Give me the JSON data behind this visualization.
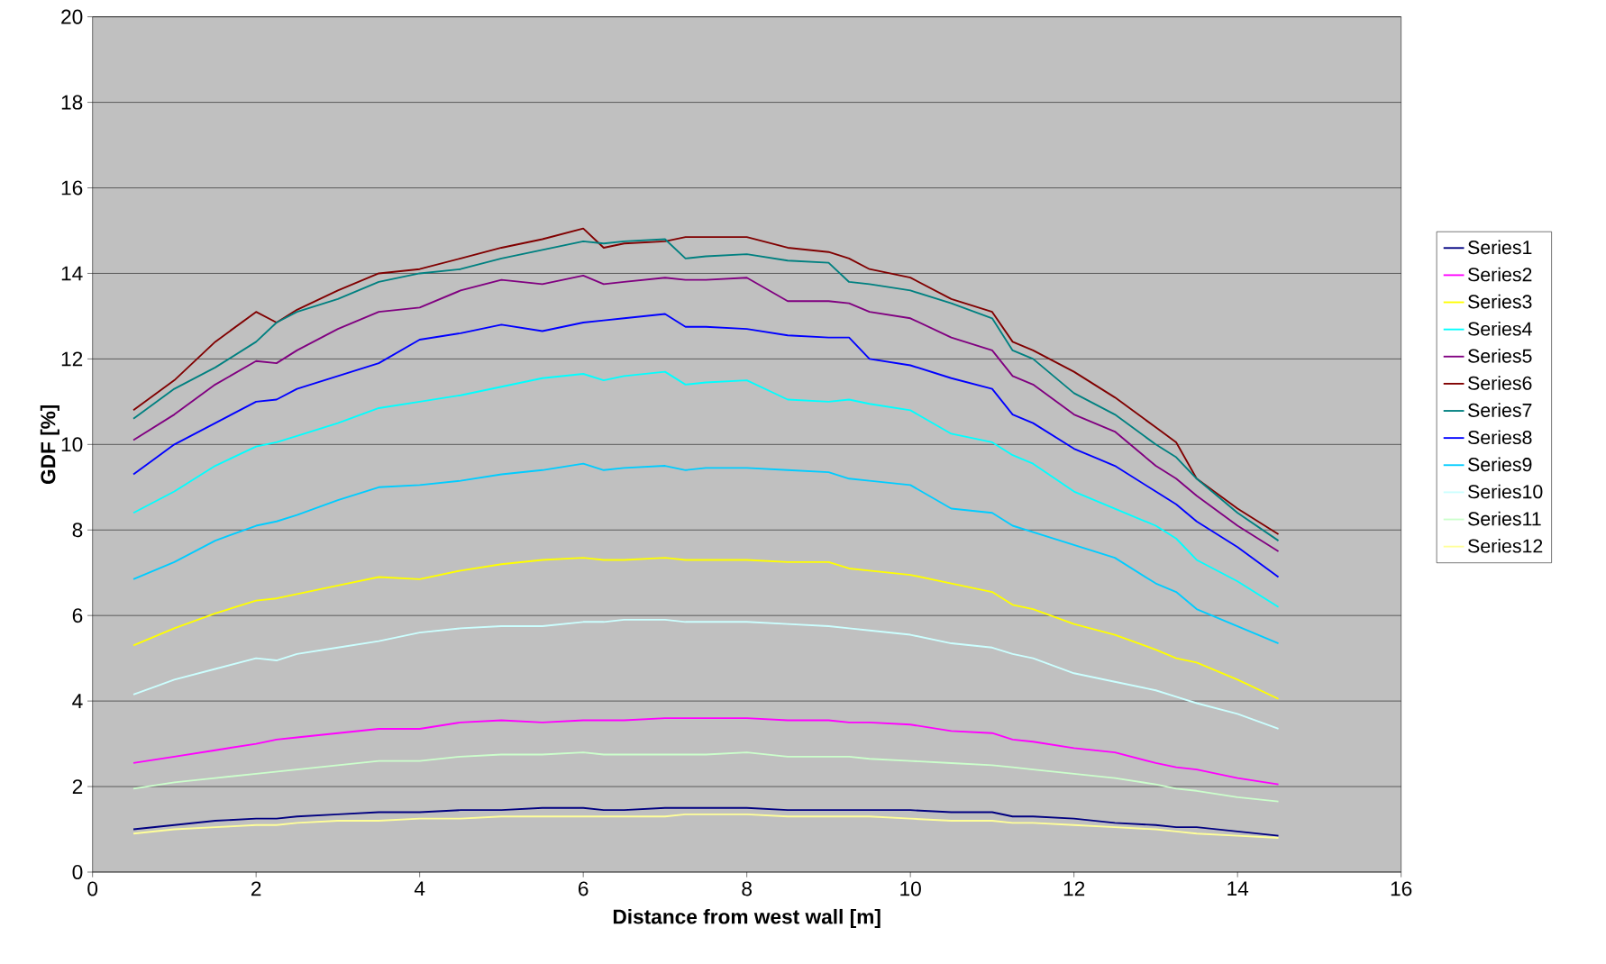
{
  "chart_data": {
    "type": "line",
    "xlabel": "Distance from west wall [m]",
    "ylabel": "GDF [%]",
    "x": [
      0.5,
      1,
      1.5,
      2,
      2.25,
      2.5,
      3,
      3.5,
      4,
      4.5,
      5,
      5.5,
      6,
      6.25,
      6.5,
      7,
      7.25,
      7.5,
      8,
      8.5,
      9,
      9.25,
      9.5,
      10,
      10.5,
      11,
      11.25,
      11.5,
      12,
      12.5,
      13,
      13.25,
      13.5,
      14,
      14.5
    ],
    "series": [
      {
        "name": "Series1",
        "color": "#000080",
        "values": [
          1.0,
          1.1,
          1.2,
          1.25,
          1.25,
          1.3,
          1.35,
          1.4,
          1.4,
          1.45,
          1.45,
          1.5,
          1.5,
          1.45,
          1.45,
          1.5,
          1.5,
          1.5,
          1.5,
          1.45,
          1.45,
          1.45,
          1.45,
          1.45,
          1.4,
          1.4,
          1.3,
          1.3,
          1.25,
          1.15,
          1.1,
          1.05,
          1.05,
          0.95,
          0.85
        ]
      },
      {
        "name": "Series2",
        "color": "#ff00ff",
        "values": [
          2.55,
          2.7,
          2.85,
          3.0,
          3.1,
          3.15,
          3.25,
          3.35,
          3.35,
          3.5,
          3.55,
          3.5,
          3.55,
          3.55,
          3.55,
          3.6,
          3.6,
          3.6,
          3.6,
          3.55,
          3.55,
          3.5,
          3.5,
          3.45,
          3.3,
          3.25,
          3.1,
          3.05,
          2.9,
          2.8,
          2.55,
          2.45,
          2.4,
          2.2,
          2.05
        ]
      },
      {
        "name": "Series3",
        "color": "#ffff00",
        "values": [
          5.3,
          5.7,
          6.05,
          6.35,
          6.4,
          6.5,
          6.7,
          6.9,
          6.85,
          7.05,
          7.2,
          7.3,
          7.35,
          7.3,
          7.3,
          7.35,
          7.3,
          7.3,
          7.3,
          7.25,
          7.25,
          7.1,
          7.05,
          6.95,
          6.75,
          6.55,
          6.25,
          6.15,
          5.8,
          5.55,
          5.2,
          5.0,
          4.9,
          4.5,
          4.05
        ]
      },
      {
        "name": "Series4",
        "color": "#00ffff",
        "values": [
          8.4,
          8.9,
          9.5,
          9.95,
          10.05,
          10.2,
          10.5,
          10.85,
          11.0,
          11.15,
          11.35,
          11.55,
          11.65,
          11.5,
          11.6,
          11.7,
          11.4,
          11.45,
          11.5,
          11.05,
          11.0,
          11.05,
          10.95,
          10.8,
          10.25,
          10.05,
          9.75,
          9.55,
          8.9,
          8.5,
          8.1,
          7.8,
          7.3,
          6.8,
          6.2
        ]
      },
      {
        "name": "Series5",
        "color": "#800080",
        "values": [
          10.1,
          10.7,
          11.4,
          11.95,
          11.9,
          12.2,
          12.7,
          13.1,
          13.2,
          13.6,
          13.85,
          13.75,
          13.95,
          13.75,
          13.8,
          13.9,
          13.85,
          13.85,
          13.9,
          13.35,
          13.35,
          13.3,
          13.1,
          12.95,
          12.5,
          12.2,
          11.6,
          11.4,
          10.7,
          10.3,
          9.5,
          9.2,
          8.8,
          8.1,
          7.5
        ]
      },
      {
        "name": "Series6",
        "color": "#800000",
        "values": [
          10.8,
          11.5,
          12.4,
          13.1,
          12.85,
          13.15,
          13.6,
          14.0,
          14.1,
          14.35,
          14.6,
          14.8,
          15.05,
          14.6,
          14.7,
          14.75,
          14.85,
          14.85,
          14.85,
          14.6,
          14.5,
          14.35,
          14.1,
          13.9,
          13.4,
          13.1,
          12.4,
          12.2,
          11.7,
          11.1,
          10.4,
          10.05,
          9.2,
          8.5,
          7.9
        ]
      },
      {
        "name": "Series7",
        "color": "#008080",
        "values": [
          10.6,
          11.3,
          11.8,
          12.4,
          12.85,
          13.1,
          13.4,
          13.8,
          14.0,
          14.1,
          14.35,
          14.55,
          14.75,
          14.7,
          14.75,
          14.8,
          14.35,
          14.4,
          14.45,
          14.3,
          14.25,
          13.8,
          13.75,
          13.6,
          13.3,
          12.95,
          12.2,
          12.0,
          11.2,
          10.7,
          10.0,
          9.7,
          9.2,
          8.4,
          7.75
        ]
      },
      {
        "name": "Series8",
        "color": "#0000ff",
        "values": [
          9.3,
          10.0,
          10.5,
          11.0,
          11.05,
          11.3,
          11.6,
          11.9,
          12.45,
          12.6,
          12.8,
          12.65,
          12.85,
          12.9,
          12.95,
          13.05,
          12.75,
          12.75,
          12.7,
          12.55,
          12.5,
          12.5,
          12.0,
          11.85,
          11.55,
          11.3,
          10.7,
          10.5,
          9.9,
          9.5,
          8.9,
          8.6,
          8.2,
          7.6,
          6.9
        ]
      },
      {
        "name": "Series9",
        "color": "#00ccff",
        "values": [
          6.85,
          7.25,
          7.75,
          8.1,
          8.2,
          8.35,
          8.7,
          9.0,
          9.05,
          9.15,
          9.3,
          9.4,
          9.55,
          9.4,
          9.45,
          9.5,
          9.4,
          9.45,
          9.45,
          9.4,
          9.35,
          9.2,
          9.15,
          9.05,
          8.5,
          8.4,
          8.1,
          7.95,
          7.65,
          7.35,
          6.75,
          6.55,
          6.15,
          5.75,
          5.35
        ]
      },
      {
        "name": "Series10",
        "color": "#ccffff",
        "values": [
          4.15,
          4.5,
          4.75,
          5.0,
          4.95,
          5.1,
          5.25,
          5.4,
          5.6,
          5.7,
          5.75,
          5.75,
          5.85,
          5.85,
          5.9,
          5.9,
          5.85,
          5.85,
          5.85,
          5.8,
          5.75,
          5.7,
          5.65,
          5.55,
          5.35,
          5.25,
          5.1,
          5.0,
          4.65,
          4.45,
          4.25,
          4.1,
          3.95,
          3.7,
          3.35
        ]
      },
      {
        "name": "Series11",
        "color": "#ccffcc",
        "values": [
          1.95,
          2.1,
          2.2,
          2.3,
          2.35,
          2.4,
          2.5,
          2.6,
          2.6,
          2.7,
          2.75,
          2.75,
          2.8,
          2.75,
          2.75,
          2.75,
          2.75,
          2.75,
          2.8,
          2.7,
          2.7,
          2.7,
          2.65,
          2.6,
          2.55,
          2.5,
          2.45,
          2.4,
          2.3,
          2.2,
          2.05,
          1.95,
          1.9,
          1.75,
          1.65
        ]
      },
      {
        "name": "Series12",
        "color": "#ffff99",
        "values": [
          0.9,
          1.0,
          1.05,
          1.1,
          1.1,
          1.15,
          1.2,
          1.2,
          1.25,
          1.25,
          1.3,
          1.3,
          1.3,
          1.3,
          1.3,
          1.3,
          1.35,
          1.35,
          1.35,
          1.3,
          1.3,
          1.3,
          1.3,
          1.25,
          1.2,
          1.2,
          1.15,
          1.15,
          1.1,
          1.05,
          1.0,
          0.95,
          0.9,
          0.85,
          0.8
        ]
      }
    ],
    "xlim": [
      0,
      16
    ],
    "xticks": [
      0,
      2,
      4,
      6,
      8,
      10,
      12,
      14,
      16
    ],
    "ylim": [
      0,
      20
    ],
    "yticks": [
      0,
      2,
      4,
      6,
      8,
      10,
      12,
      14,
      16,
      18,
      20
    ],
    "grid": "y",
    "legend": "right",
    "marker": "none",
    "line_style": "solid"
  }
}
